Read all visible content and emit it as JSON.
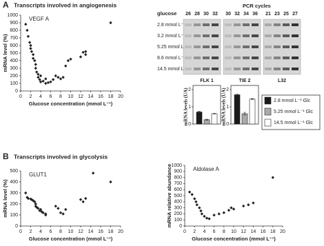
{
  "panels": [
    {
      "label": "A",
      "title": "Transcripts involved in angiogenesis"
    },
    {
      "label": "B",
      "title": "Transcripts involved in glycolysis"
    }
  ],
  "gel": {
    "header": "PCR cycles",
    "row_header": "glucose",
    "rows": [
      "2.8 mmol L⁻¹",
      "3.2 mmol L⁻¹",
      "5.25 mmol L⁻¹",
      "8.6 mmol L⁻¹",
      "14.5 mmol L⁻¹"
    ],
    "cycles": [
      [
        "26",
        "28",
        "30",
        "32"
      ],
      [
        "30",
        "32",
        "34",
        "36"
      ],
      [
        "21",
        "23",
        "25",
        "27"
      ]
    ],
    "third_gene": "L32"
  },
  "chart_data": [
    {
      "type": "scatter",
      "title": "VEGF A",
      "xlabel": "Glucose concentration (mmol L⁻¹)",
      "ylabel": "mRNA level (%)",
      "color": "#222",
      "x": [
        1,
        1.3,
        1.5,
        1.8,
        2,
        2,
        2.2,
        2.5,
        2.5,
        2.8,
        3,
        3,
        3.2,
        3.5,
        3.5,
        3.8,
        4,
        4,
        4.5,
        5,
        5,
        5.5,
        6,
        6.5,
        7,
        7.5,
        8,
        8.5,
        9,
        9.5,
        10,
        12,
        12.5,
        13,
        13,
        18
      ],
      "values": [
        880,
        800,
        720,
        640,
        600,
        560,
        520,
        480,
        430,
        400,
        350,
        300,
        250,
        220,
        180,
        150,
        120,
        200,
        130,
        100,
        160,
        110,
        120,
        150,
        200,
        180,
        160,
        180,
        330,
        400,
        420,
        450,
        510,
        520,
        480,
        900
      ],
      "xlim": [
        0,
        20
      ],
      "xticks": [
        0,
        2,
        4,
        6,
        8,
        10,
        12,
        14,
        16,
        18,
        20
      ],
      "ylim": [
        0,
        1000
      ],
      "yticks": [
        0,
        100,
        200,
        300,
        400,
        500,
        600,
        700,
        800,
        900,
        1000
      ]
    },
    {
      "type": "bar",
      "categories": [
        "FLK 1",
        "TIE 2"
      ],
      "ylabel": "mRNA levels (UA)",
      "ylim": [
        0,
        2
      ],
      "yticks": [
        0,
        1,
        2
      ],
      "series": [
        {
          "name": "2.8 mmol L⁻¹ Glc",
          "color": "#1a1a1a",
          "values": [
            0.7,
            1.7
          ],
          "errors": [
            0.05,
            0.03
          ]
        },
        {
          "name": "5.25 mmol L⁻¹ Glc",
          "color": "#aaaaaa",
          "values": [
            0.25,
            0.6
          ],
          "errors": [
            0.03,
            0.08
          ]
        },
        {
          "name": "14.5 mmol L⁻¹ Glc",
          "color": "#ffffff",
          "values": [
            0.6,
            1.45
          ],
          "errors": [
            0.02,
            0.03
          ]
        }
      ]
    },
    {
      "type": "scatter",
      "title": "GLUT1",
      "xlabel": "Glucose concentration (mmol L⁻¹)",
      "ylabel": "mRNA level (%)",
      "color": "#222",
      "x": [
        1,
        1.3,
        1.5,
        2,
        2.2,
        2.5,
        2.8,
        3,
        3,
        3.2,
        3.5,
        3.8,
        4,
        4.2,
        4.5,
        5,
        5,
        7,
        7.5,
        8,
        8.5,
        9,
        12,
        12.5,
        13,
        14.5,
        18
      ],
      "values": [
        300,
        260,
        250,
        245,
        240,
        230,
        220,
        200,
        180,
        170,
        160,
        140,
        150,
        130,
        120,
        110,
        100,
        180,
        160,
        120,
        110,
        150,
        240,
        220,
        250,
        480,
        400
      ],
      "xlim": [
        0,
        20
      ],
      "xticks": [
        0,
        2,
        4,
        6,
        8,
        10,
        12,
        14,
        16,
        18,
        20
      ],
      "ylim": [
        0,
        500
      ],
      "yticks": [
        0,
        100,
        200,
        300,
        400,
        500
      ]
    },
    {
      "type": "scatter",
      "title": "Aldolase A",
      "xlabel": "Glucose concentration (mmol L⁻¹)",
      "ylabel": "mRNA relative abundance",
      "color": "#222",
      "x": [
        1,
        1.5,
        2,
        2.3,
        2.5,
        3,
        3.3,
        3.5,
        4,
        4.5,
        5,
        6,
        7,
        8,
        9,
        9.5,
        10,
        12,
        13,
        14,
        18
      ],
      "values": [
        560,
        520,
        450,
        400,
        350,
        300,
        250,
        200,
        160,
        130,
        120,
        180,
        200,
        220,
        260,
        300,
        280,
        330,
        350,
        380,
        800
      ],
      "xlim": [
        0,
        20
      ],
      "xticks": [
        0,
        2,
        4,
        6,
        8,
        10,
        12,
        14,
        16,
        18,
        20
      ],
      "ylim": [
        0,
        1000
      ],
      "yticks": [
        0,
        100,
        200,
        300,
        400,
        500,
        600,
        700,
        800,
        900,
        1000
      ]
    }
  ]
}
